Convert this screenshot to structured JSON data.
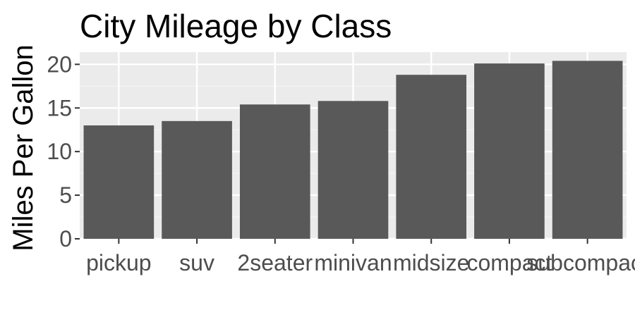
{
  "chart_data": {
    "type": "bar",
    "title": "City Mileage by Class",
    "xlabel": "",
    "ylabel": "Miles Per Gallon",
    "categories": [
      "pickup",
      "suv",
      "2seater",
      "minivan",
      "midsize",
      "compact",
      "subcompact"
    ],
    "values": [
      13.0,
      13.5,
      15.4,
      15.8,
      18.8,
      20.1,
      20.4
    ],
    "y_ticks": [
      0,
      5,
      10,
      15,
      20
    ],
    "ylim": [
      0,
      21.4
    ],
    "grid": true,
    "legend": "none",
    "colors": {
      "bar": "#595959",
      "panel": "#ebebeb",
      "grid_major": "#ffffff",
      "grid_minor": "#f5f5f5",
      "tick_text": "#4d4d4d",
      "tick_mark": "#333333"
    }
  }
}
